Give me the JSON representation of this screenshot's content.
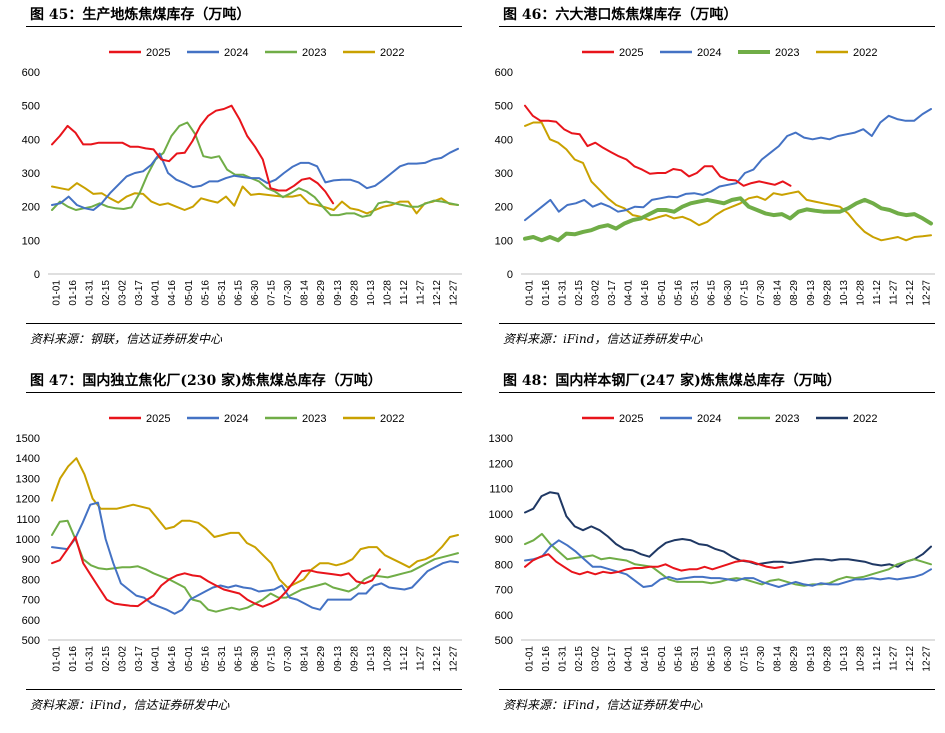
{
  "chart_data": [
    {
      "type": "line",
      "title": "图 45：生产地炼焦煤库存（万吨）",
      "source": "资料来源：钢联，信达证券研发中心",
      "ylim": [
        0,
        600
      ],
      "yticks": [
        0,
        100,
        200,
        300,
        400,
        500,
        600
      ],
      "ytick_labels": [
        "0",
        "100",
        "200",
        "300",
        "400",
        "500",
        "600"
      ],
      "xticks": [
        "01-01",
        "01-16",
        "01-31",
        "02-15",
        "03-02",
        "03-17",
        "04-01",
        "04-16",
        "05-01",
        "05-16",
        "05-31",
        "06-15",
        "06-30",
        "07-15",
        "07-30",
        "08-14",
        "08-29",
        "09-13",
        "09-28",
        "10-13",
        "10-28",
        "11-12",
        "11-27",
        "12-12",
        "12-27"
      ],
      "legend": "top",
      "series": [
        {
          "name": "2025",
          "color": "#e8141b",
          "values": [
            385,
            410,
            440,
            420,
            385,
            385,
            390,
            390,
            390,
            390,
            378,
            378,
            373,
            370,
            340,
            335,
            358,
            360,
            395,
            440,
            470,
            485,
            490,
            500,
            460,
            410,
            378,
            340,
            255,
            248,
            248,
            262,
            280,
            285,
            270,
            245,
            210
          ]
        },
        {
          "name": "2024",
          "color": "#4472c4",
          "values": [
            205,
            210,
            230,
            205,
            195,
            190,
            210,
            240,
            265,
            290,
            300,
            305,
            325,
            358,
            300,
            280,
            270,
            258,
            262,
            275,
            275,
            285,
            292,
            288,
            285,
            285,
            270,
            280,
            300,
            318,
            330,
            330,
            320,
            272,
            278,
            280,
            280,
            272,
            255,
            262,
            280,
            300,
            320,
            328,
            328,
            330,
            340,
            345,
            360,
            372
          ]
        },
        {
          "name": "2023",
          "color": "#70ad47",
          "values": [
            190,
            215,
            200,
            190,
            195,
            200,
            210,
            200,
            195,
            193,
            198,
            240,
            295,
            340,
            360,
            410,
            440,
            450,
            415,
            350,
            345,
            350,
            310,
            295,
            295,
            285,
            275,
            255,
            245,
            228,
            240,
            255,
            245,
            228,
            200,
            175,
            175,
            180,
            180,
            170,
            175,
            210,
            215,
            210,
            205,
            200,
            200,
            210,
            218,
            215,
            210,
            205
          ]
        },
        {
          "name": "2022",
          "color": "#c9a100",
          "values": [
            260,
            255,
            250,
            270,
            255,
            238,
            240,
            225,
            212,
            230,
            240,
            238,
            215,
            205,
            210,
            200,
            190,
            200,
            225,
            218,
            212,
            230,
            203,
            260,
            235,
            238,
            235,
            232,
            230,
            230,
            235,
            210,
            205,
            198,
            190,
            215,
            195,
            190,
            180,
            190,
            200,
            205,
            215,
            215,
            180,
            210,
            215,
            225,
            208,
            205
          ]
        }
      ]
    },
    {
      "type": "line",
      "title": "图 46：六大港口炼焦煤库存（万吨）",
      "source": "资料来源：iFind，信达证券研发中心",
      "ylim": [
        0,
        600
      ],
      "yticks": [
        0,
        100,
        200,
        300,
        400,
        500,
        600
      ],
      "ytick_labels": [
        "0",
        "100",
        "200",
        "300",
        "400",
        "500",
        "600"
      ],
      "xticks": [
        "01-01",
        "01-16",
        "01-31",
        "02-15",
        "03-02",
        "03-17",
        "04-01",
        "04-16",
        "05-01",
        "05-16",
        "05-31",
        "06-15",
        "06-30",
        "07-15",
        "07-30",
        "08-14",
        "08-29",
        "09-13",
        "09-28",
        "10-13",
        "10-28",
        "11-12",
        "11-27",
        "12-12",
        "12-27"
      ],
      "legend": "top",
      "series": [
        {
          "name": "2025",
          "color": "#e8141b",
          "values": [
            500,
            470,
            455,
            455,
            452,
            430,
            418,
            415,
            380,
            390,
            375,
            362,
            350,
            340,
            320,
            310,
            298,
            300,
            300,
            312,
            308,
            290,
            300,
            320,
            320,
            290,
            280,
            278,
            262,
            270,
            275,
            270,
            265,
            275,
            262
          ]
        },
        {
          "name": "2024",
          "color": "#4472c4",
          "values": [
            160,
            180,
            200,
            220,
            185,
            205,
            210,
            220,
            200,
            210,
            200,
            185,
            190,
            200,
            198,
            220,
            225,
            230,
            228,
            238,
            240,
            235,
            245,
            260,
            265,
            270,
            300,
            310,
            340,
            360,
            380,
            410,
            420,
            405,
            400,
            405,
            400,
            410,
            415,
            420,
            430,
            410,
            450,
            470,
            460,
            455,
            455,
            475,
            490
          ]
        },
        {
          "name": "2023",
          "color": "#70ad47",
          "values": [
            105,
            110,
            100,
            110,
            100,
            120,
            118,
            125,
            130,
            140,
            145,
            135,
            150,
            160,
            165,
            178,
            190,
            190,
            185,
            200,
            210,
            215,
            220,
            215,
            210,
            220,
            225,
            200,
            190,
            180,
            175,
            178,
            165,
            185,
            192,
            188,
            185,
            185,
            185,
            195,
            210,
            220,
            210,
            195,
            190,
            180,
            175,
            178,
            165,
            150
          ]
        },
        {
          "name": "2022",
          "color": "#c9a100",
          "values": [
            440,
            450,
            450,
            400,
            390,
            370,
            340,
            330,
            275,
            250,
            225,
            205,
            195,
            175,
            170,
            160,
            168,
            175,
            165,
            170,
            160,
            145,
            155,
            175,
            190,
            200,
            210,
            225,
            230,
            220,
            240,
            235,
            240,
            245,
            220,
            215,
            210,
            205,
            200,
            180,
            150,
            125,
            110,
            100,
            105,
            110,
            100,
            110,
            112,
            115
          ]
        }
      ]
    },
    {
      "type": "line",
      "title": "图 47：国内独立焦化厂(230 家)炼焦煤总库存（万吨）",
      "source": "资料来源：iFind，信达证券研发中心",
      "ylim": [
        500,
        1500
      ],
      "yticks": [
        500,
        600,
        700,
        800,
        900,
        1000,
        1100,
        1200,
        1300,
        1400,
        1500
      ],
      "ytick_labels": [
        "500",
        "600",
        "700",
        "800",
        "900",
        "1000",
        "1100",
        "1200",
        "1300",
        "1400",
        "1500"
      ],
      "xticks": [
        "01-01",
        "01-16",
        "01-31",
        "02-15",
        "03-02",
        "03-17",
        "04-01",
        "04-16",
        "05-01",
        "05-16",
        "05-31",
        "06-15",
        "06-30",
        "07-15",
        "07-30",
        "08-14",
        "08-29",
        "09-13",
        "09-28",
        "10-13",
        "10-28",
        "11-12",
        "11-27",
        "12-12",
        "12-27"
      ],
      "legend": "top",
      "series": [
        {
          "name": "2025",
          "color": "#e8141b",
          "values": [
            880,
            895,
            950,
            1010,
            880,
            820,
            760,
            700,
            680,
            675,
            670,
            668,
            695,
            720,
            770,
            800,
            820,
            830,
            820,
            815,
            790,
            770,
            750,
            740,
            730,
            700,
            680,
            665,
            680,
            700,
            740,
            790,
            840,
            845,
            835,
            830,
            825,
            820,
            830,
            790,
            780,
            795,
            850
          ]
        },
        {
          "name": "2024",
          "color": "#4472c4",
          "values": [
            960,
            955,
            950,
            1000,
            1080,
            1170,
            1180,
            1000,
            880,
            780,
            750,
            720,
            710,
            680,
            665,
            650,
            630,
            650,
            700,
            720,
            740,
            760,
            770,
            760,
            770,
            760,
            755,
            740,
            745,
            750,
            770,
            710,
            700,
            680,
            660,
            650,
            700,
            700,
            700,
            700,
            730,
            730,
            770,
            780,
            760,
            755,
            750,
            760,
            800,
            840,
            860,
            880,
            890,
            885
          ]
        },
        {
          "name": "2023",
          "color": "#70ad47",
          "values": [
            1020,
            1085,
            1090,
            1000,
            900,
            870,
            855,
            850,
            855,
            860,
            860,
            865,
            850,
            830,
            815,
            800,
            780,
            760,
            700,
            690,
            650,
            640,
            650,
            660,
            650,
            660,
            680,
            700,
            730,
            710,
            710,
            730,
            750,
            760,
            770,
            780,
            760,
            750,
            740,
            760,
            800,
            820,
            815,
            810,
            820,
            830,
            840,
            860,
            880,
            900,
            910,
            920,
            930
          ]
        },
        {
          "name": "2022",
          "color": "#c9a100",
          "values": [
            1190,
            1300,
            1360,
            1400,
            1320,
            1200,
            1150,
            1150,
            1150,
            1160,
            1170,
            1160,
            1150,
            1100,
            1050,
            1060,
            1090,
            1090,
            1080,
            1050,
            1010,
            1020,
            1030,
            1030,
            980,
            960,
            920,
            880,
            800,
            760,
            780,
            800,
            850,
            880,
            880,
            870,
            880,
            900,
            950,
            960,
            960,
            920,
            900,
            880,
            860,
            890,
            900,
            920,
            960,
            1010,
            1020
          ]
        }
      ]
    },
    {
      "type": "line",
      "title": "图 48：国内样本钢厂(247 家)炼焦煤总库存（万吨）",
      "source": "资料来源：iFind，信达证券研发中心",
      "ylim": [
        500,
        1300
      ],
      "yticks": [
        500,
        600,
        700,
        800,
        900,
        1000,
        1100,
        1200,
        1300
      ],
      "ytick_labels": [
        "500",
        "600",
        "700",
        "800",
        "900",
        "1000",
        "1100",
        "1200",
        "1300"
      ],
      "xticks": [
        "01-01",
        "01-16",
        "01-31",
        "02-15",
        "03-02",
        "03-17",
        "04-01",
        "04-16",
        "05-01",
        "05-16",
        "05-31",
        "06-15",
        "06-30",
        "07-15",
        "07-30",
        "08-14",
        "08-29",
        "09-13",
        "09-28",
        "10-13",
        "10-28",
        "11-12",
        "11-27",
        "12-12",
        "12-27"
      ],
      "legend": "top",
      "series": [
        {
          "name": "2025",
          "color": "#e8141b",
          "values": [
            790,
            815,
            830,
            840,
            810,
            790,
            770,
            760,
            770,
            760,
            770,
            765,
            770,
            780,
            785,
            785,
            790,
            790,
            800,
            785,
            775,
            780,
            780,
            790,
            780,
            790,
            800,
            810,
            815,
            810,
            800,
            790,
            785,
            790
          ]
        },
        {
          "name": "2024",
          "color": "#4472c4",
          "values": [
            815,
            820,
            830,
            870,
            895,
            875,
            850,
            820,
            790,
            790,
            780,
            770,
            760,
            735,
            710,
            715,
            740,
            750,
            740,
            745,
            750,
            750,
            745,
            745,
            740,
            735,
            745,
            745,
            730,
            720,
            710,
            720,
            730,
            720,
            715,
            725,
            720,
            720,
            730,
            740,
            740,
            745,
            740,
            745,
            740,
            745,
            750,
            760,
            780
          ]
        },
        {
          "name": "2023",
          "color": "#70ad47",
          "values": [
            880,
            895,
            920,
            880,
            850,
            820,
            825,
            830,
            835,
            820,
            825,
            820,
            815,
            800,
            795,
            790,
            765,
            740,
            730,
            730,
            730,
            730,
            725,
            730,
            740,
            745,
            740,
            730,
            720,
            735,
            740,
            730,
            720,
            715,
            720,
            720,
            725,
            740,
            750,
            745,
            750,
            760,
            770,
            780,
            800,
            810,
            820,
            810,
            800
          ]
        },
        {
          "name": "2022",
          "color": "#1f3864",
          "values": [
            1005,
            1020,
            1070,
            1085,
            1080,
            990,
            950,
            935,
            950,
            935,
            910,
            880,
            860,
            855,
            840,
            830,
            860,
            885,
            895,
            900,
            895,
            880,
            875,
            860,
            850,
            830,
            815,
            810,
            800,
            805,
            810,
            810,
            805,
            810,
            815,
            820,
            820,
            815,
            820,
            820,
            815,
            810,
            800,
            795,
            800,
            790,
            810,
            820,
            840,
            870
          ]
        }
      ]
    }
  ]
}
